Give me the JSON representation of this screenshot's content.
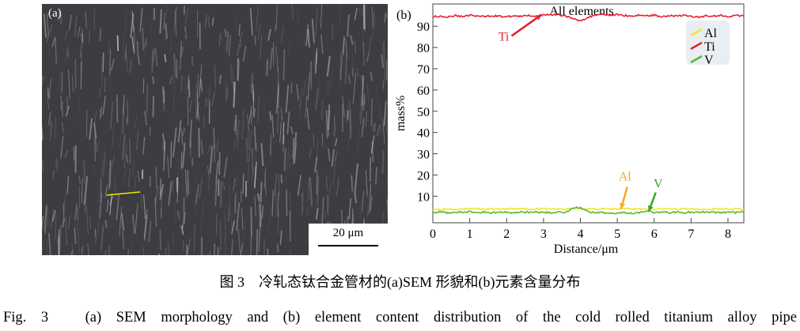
{
  "panel_a": {
    "label": "(a)",
    "scale_bar": "20 μm",
    "marker_color": "#f2e600"
  },
  "panel_b": {
    "label": "(b)"
  },
  "chart_data": {
    "type": "line",
    "title": "All elements",
    "xlabel": "Distance/μm",
    "ylabel": "mass%",
    "xlim": [
      0,
      8.43
    ],
    "ylim": [
      -2.5,
      100.5
    ],
    "xticks": [
      0,
      1,
      2,
      3,
      4,
      5,
      6,
      7,
      8
    ],
    "yticks": [
      10,
      20,
      30,
      40,
      50,
      60,
      70,
      80,
      90
    ],
    "grid": false,
    "legend": {
      "position": "top-right",
      "entries": [
        "Al",
        "Ti",
        "V"
      ]
    },
    "x": [
      0,
      0.2,
      0.4,
      0.6,
      0.8,
      1.0,
      1.2,
      1.4,
      1.6,
      1.8,
      2.0,
      2.2,
      2.4,
      2.6,
      2.8,
      3.0,
      3.2,
      3.4,
      3.6,
      3.8,
      4.0,
      4.2,
      4.4,
      4.6,
      4.8,
      5.0,
      5.2,
      5.4,
      5.6,
      5.8,
      6.0,
      6.2,
      6.4,
      6.6,
      6.8,
      7.0,
      7.2,
      7.4,
      7.6,
      7.8,
      8.0,
      8.2,
      8.43
    ],
    "series": [
      {
        "name": "Al",
        "color": "#f0e62a",
        "values": [
          4,
          3.8,
          4.1,
          4,
          3.9,
          4.2,
          4,
          3.8,
          4.1,
          4,
          3.9,
          4,
          4.1,
          3.9,
          4,
          4.1,
          4,
          3.9,
          4,
          4.3,
          4.4,
          4,
          3.9,
          4.1,
          4,
          3.9,
          4,
          4.1,
          4,
          4.1,
          3.9,
          4,
          4.1,
          3.9,
          4,
          4.1,
          4,
          3.9,
          4.1,
          4,
          3.9,
          4,
          4
        ]
      },
      {
        "name": "Ti",
        "color": "#e8202e",
        "values": [
          94.5,
          94.8,
          94.3,
          95,
          94.6,
          95.2,
          94.8,
          94.5,
          95,
          94.7,
          94.4,
          94.9,
          94.6,
          95.1,
          94.7,
          95.6,
          95.2,
          95.5,
          94.9,
          93.3,
          92.8,
          94,
          95.4,
          95.8,
          95.2,
          95.5,
          95.1,
          94.8,
          95.3,
          94.9,
          95.2,
          94.6,
          95,
          94.8,
          95.1,
          94.7,
          94.2,
          95,
          94.8,
          95.1,
          94.7,
          95,
          94.9
        ]
      },
      {
        "name": "V",
        "color": "#58b830",
        "values": [
          2.3,
          2.6,
          2.2,
          2.5,
          2.4,
          2.7,
          2.3,
          2.5,
          2.2,
          2.6,
          2.4,
          2.2,
          2.7,
          2.3,
          2.5,
          2.4,
          2.2,
          2.6,
          2.5,
          4.4,
          4.7,
          2.8,
          2,
          2.3,
          1.9,
          2.2,
          2.4,
          2.1,
          2.3,
          3.3,
          2.2,
          2.5,
          2.3,
          2.6,
          2.2,
          2.5,
          2.3,
          2.7,
          2.4,
          2.2,
          2.6,
          2.3,
          2.5
        ]
      }
    ],
    "annotations": [
      {
        "text": "Ti",
        "color": "#e8202e",
        "points_to": [
          2.95,
          95.5
        ]
      },
      {
        "text": "Al",
        "color": "#f5a623",
        "points_to": [
          5.1,
          4
        ]
      },
      {
        "text": "V",
        "color": "#3aa820",
        "points_to": [
          5.85,
          2.8
        ]
      }
    ]
  },
  "caption": {
    "zh": "图 3　冷轧态钛合金管材的(a)SEM 形貌和(b)元素含量分布",
    "en": "Fig. 3　(a) SEM morphology and (b) element content distribution of the cold rolled titanium alloy pipe"
  }
}
